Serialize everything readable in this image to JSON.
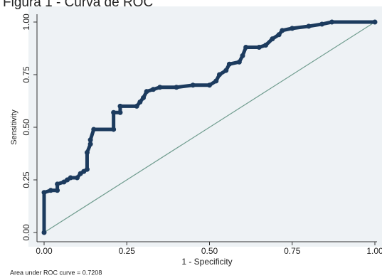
{
  "chart_data": {
    "type": "line",
    "title": "Figura 1 - Curva de ROC",
    "xlabel": "1 - Specificity",
    "ylabel": "Sensitivity",
    "note": "Area under ROC curve = 0.7208",
    "color": "#1c3b5e",
    "x": [
      0,
      0,
      0.02,
      0.04,
      0.04,
      0.06,
      0.07,
      0.08,
      0.1,
      0.11,
      0.12,
      0.13,
      0.13,
      0.14,
      0.14,
      0.15,
      0.21,
      0.21,
      0.23,
      0.23,
      0.28,
      0.29,
      0.3,
      0.31,
      0.33,
      0.35,
      0.4,
      0.45,
      0.5,
      0.52,
      0.53,
      0.55,
      0.56,
      0.59,
      0.6,
      0.61,
      0.65,
      0.67,
      0.69,
      0.71,
      0.72,
      0.75,
      0.8,
      0.84,
      0.87,
      1.0
    ],
    "values": [
      0,
      0.19,
      0.2,
      0.2,
      0.23,
      0.24,
      0.25,
      0.26,
      0.26,
      0.28,
      0.29,
      0.3,
      0.38,
      0.42,
      0.44,
      0.49,
      0.49,
      0.57,
      0.57,
      0.6,
      0.6,
      0.62,
      0.64,
      0.67,
      0.68,
      0.69,
      0.69,
      0.7,
      0.7,
      0.72,
      0.75,
      0.77,
      0.8,
      0.81,
      0.84,
      0.88,
      0.88,
      0.89,
      0.92,
      0.94,
      0.96,
      0.97,
      0.98,
      0.99,
      1.0,
      1.0
    ],
    "reference_line": {
      "x": [
        0,
        1
      ],
      "values": [
        0,
        1
      ],
      "color": "#6f9c8e"
    },
    "xlim": [
      0,
      1
    ],
    "ylim": [
      0,
      1
    ],
    "xticks": [
      {
        "value": 0,
        "label": "0.00"
      },
      {
        "value": 0.25,
        "label": "0.25"
      },
      {
        "value": 0.5,
        "label": "0.50"
      },
      {
        "value": 0.75,
        "label": "0.75"
      },
      {
        "value": 1,
        "label": "1.00"
      }
    ],
    "yticks": [
      {
        "value": 0,
        "label": "0.00"
      },
      {
        "value": 0.25,
        "label": "0.25"
      },
      {
        "value": 0.5,
        "label": "0.50"
      },
      {
        "value": 0.75,
        "label": "0.75"
      },
      {
        "value": 1,
        "label": "1.00"
      }
    ]
  }
}
